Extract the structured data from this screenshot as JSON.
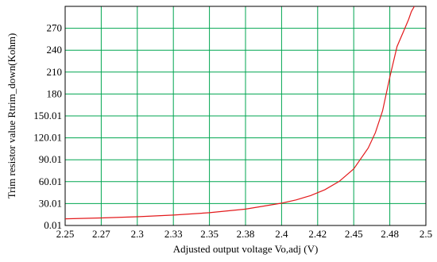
{
  "chart_data": {
    "type": "line",
    "title": "",
    "xlabel": "Adjusted output voltage Vo,adj (V)",
    "ylabel": "Trim resistor value Rtrim_down(Kohm)",
    "x_ticks": [
      "2.25",
      "2.27",
      "2.3",
      "2.33",
      "2.35",
      "2.38",
      "2.4",
      "2.42",
      "2.45",
      "2.48",
      "2.5"
    ],
    "y_ticks": [
      "0.01",
      "30.01",
      "60.01",
      "90.01",
      "120.01",
      "150.01",
      "180",
      "210",
      "240",
      "270"
    ],
    "xlim": [
      2.25,
      2.5
    ],
    "ylim": [
      0.01,
      300
    ],
    "grid": true,
    "legend": "none",
    "colors": {
      "line": "#e31a1c",
      "grid": "#00a651",
      "axis": "#000000",
      "background": "#ffffff"
    },
    "series": [
      {
        "x": [
          2.25,
          2.275,
          2.3,
          2.325,
          2.35,
          2.375,
          2.4,
          2.41,
          2.42,
          2.43,
          2.44,
          2.45,
          2.46,
          2.465,
          2.47,
          2.475,
          2.48,
          2.485,
          2.488,
          2.49,
          2.492
        ],
        "y": [
          9.1,
          10.3,
          12,
          14.3,
          17.5,
          22.4,
          30.5,
          35,
          40.9,
          49,
          60.4,
          77.5,
          106,
          127,
          157,
          203,
          245,
          268,
          282,
          293,
          300
        ]
      }
    ]
  }
}
